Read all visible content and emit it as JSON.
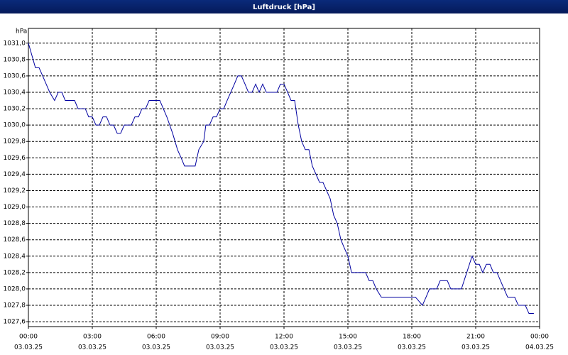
{
  "chart_data": {
    "type": "line",
    "title": "Luftdruck [hPa]",
    "y_label": "hPa",
    "xlim": [
      0,
      24
    ],
    "xticks": [
      {
        "value": 0,
        "label": "00:00"
      },
      {
        "value": 3,
        "label": "03:00"
      },
      {
        "value": 6,
        "label": "06:00"
      },
      {
        "value": 9,
        "label": "09:00"
      },
      {
        "value": 12,
        "label": "12:00"
      },
      {
        "value": 15,
        "label": "15:00"
      },
      {
        "value": 18,
        "label": "18:00"
      },
      {
        "value": 21,
        "label": "21:00"
      },
      {
        "value": 24,
        "label": "00:00"
      }
    ],
    "xtick_dates": [
      "03.03.25",
      "03.03.25",
      "03.03.25",
      "03.03.25",
      "03.03.25",
      "03.03.25",
      "03.03.25",
      "03.03.25",
      "04.03.25"
    ],
    "ylim": [
      1027.54,
      1031.18
    ],
    "yticks": [
      {
        "value": 1027.6,
        "label": "1027,6"
      },
      {
        "value": 1027.8,
        "label": "1027,8"
      },
      {
        "value": 1028.0,
        "label": "1028,0"
      },
      {
        "value": 1028.2,
        "label": "1028,2"
      },
      {
        "value": 1028.4,
        "label": "1028,4"
      },
      {
        "value": 1028.6,
        "label": "1028,6"
      },
      {
        "value": 1028.8,
        "label": "1028,8"
      },
      {
        "value": 1029.0,
        "label": "1029,0"
      },
      {
        "value": 1029.2,
        "label": "1029,2"
      },
      {
        "value": 1029.4,
        "label": "1029,4"
      },
      {
        "value": 1029.6,
        "label": "1029,6"
      },
      {
        "value": 1029.8,
        "label": "1029,8"
      },
      {
        "value": 1030.0,
        "label": "1030,0"
      },
      {
        "value": 1030.2,
        "label": "1030,2"
      },
      {
        "value": 1030.4,
        "label": "1030,4"
      },
      {
        "value": 1030.6,
        "label": "1030,6"
      },
      {
        "value": 1030.8,
        "label": "1030,8"
      },
      {
        "value": 1031.0,
        "label": "1031,0"
      }
    ],
    "grid": true,
    "series": [
      {
        "color": "#0000a0",
        "x": [
          0,
          0.33,
          0.5,
          0.67,
          1,
          1.23,
          1.4,
          1.57,
          1.73,
          2.17,
          2.33,
          2.67,
          2.83,
          3,
          3.17,
          3.33,
          3.5,
          3.67,
          3.83,
          4,
          4.17,
          4.33,
          4.5,
          4.83,
          5,
          5.17,
          5.33,
          5.5,
          5.67,
          6.17,
          6.5,
          6.77,
          7,
          7.17,
          7.33,
          7.83,
          8,
          8.23,
          8.33,
          8.5,
          8.67,
          8.83,
          9,
          9.17,
          9.33,
          9.67,
          9.83,
          10,
          10.17,
          10.33,
          10.5,
          10.67,
          10.83,
          11,
          11.17,
          11.67,
          11.83,
          12,
          12.17,
          12.33,
          12.5,
          12.67,
          12.83,
          13,
          13.17,
          13.33,
          13.5,
          13.67,
          13.83,
          14,
          14.17,
          14.33,
          14.5,
          14.67,
          14.83,
          15,
          15.17,
          15.83,
          16,
          16.17,
          16.33,
          16.57,
          18.17,
          18.5,
          18.67,
          18.83,
          19.17,
          19.33,
          19.67,
          19.83,
          20.33,
          20.83,
          21,
          21.17,
          21.33,
          21.5,
          21.67,
          21.83,
          22,
          22.33,
          22.5,
          22.83,
          23,
          23.33,
          23.5,
          23.73
        ],
        "values": [
          1031.0,
          1030.7,
          1030.7,
          1030.6,
          1030.4,
          1030.3,
          1030.4,
          1030.4,
          1030.3,
          1030.3,
          1030.2,
          1030.2,
          1030.1,
          1030.1,
          1030.0,
          1030.0,
          1030.1,
          1030.1,
          1030.0,
          1030.0,
          1029.9,
          1029.9,
          1030.0,
          1030.0,
          1030.1,
          1030.1,
          1030.2,
          1030.2,
          1030.3,
          1030.3,
          1030.1,
          1029.9,
          1029.7,
          1029.6,
          1029.5,
          1029.5,
          1029.7,
          1029.8,
          1030.0,
          1030.0,
          1030.1,
          1030.1,
          1030.2,
          1030.2,
          1030.3,
          1030.5,
          1030.6,
          1030.6,
          1030.5,
          1030.4,
          1030.4,
          1030.5,
          1030.4,
          1030.5,
          1030.4,
          1030.4,
          1030.5,
          1030.5,
          1030.4,
          1030.3,
          1030.3,
          1030.0,
          1029.8,
          1029.7,
          1029.7,
          1029.5,
          1029.4,
          1029.3,
          1029.3,
          1029.2,
          1029.1,
          1028.9,
          1028.8,
          1028.6,
          1028.5,
          1028.4,
          1028.2,
          1028.2,
          1028.1,
          1028.1,
          1028.0,
          1027.9,
          1027.9,
          1027.8,
          1027.9,
          1028.0,
          1028.0,
          1028.1,
          1028.1,
          1028.0,
          1028.0,
          1028.4,
          1028.3,
          1028.3,
          1028.2,
          1028.3,
          1028.3,
          1028.2,
          1028.2,
          1028.0,
          1027.9,
          1027.9,
          1027.8,
          1027.8,
          1027.7,
          1027.7
        ]
      }
    ]
  }
}
